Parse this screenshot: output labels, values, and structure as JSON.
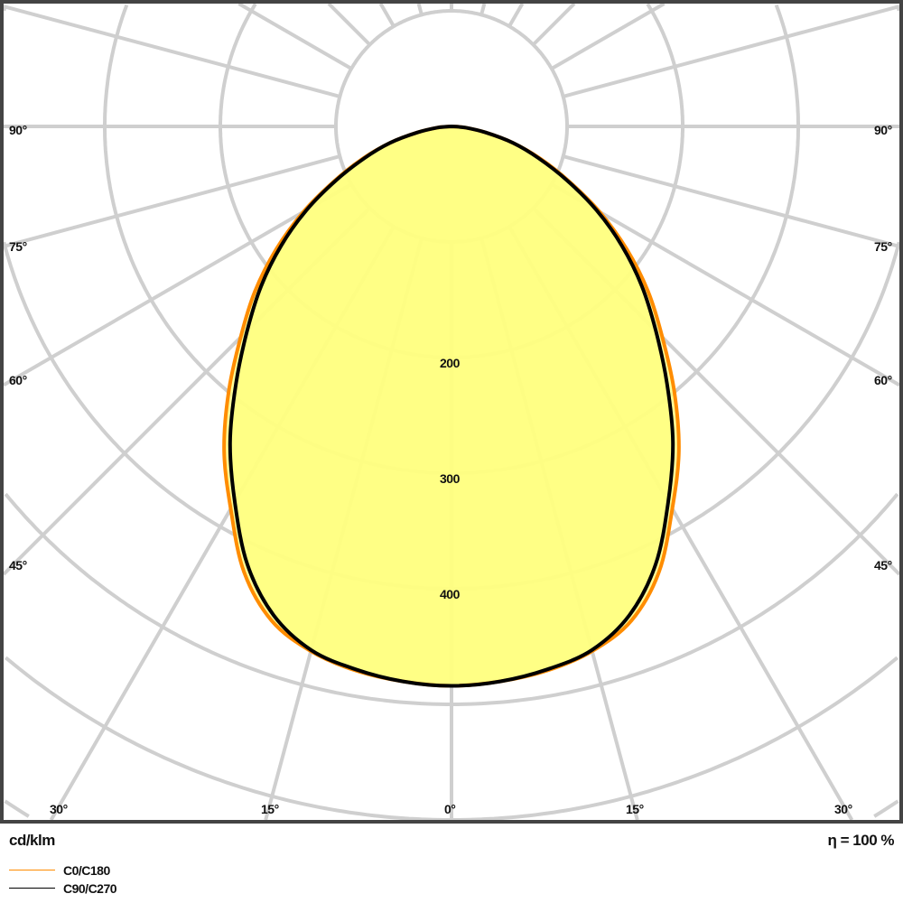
{
  "chart_data": {
    "type": "polar",
    "unit_label": "cd/klm",
    "efficiency_label": "η = 100 %",
    "radial_tick_labels": [
      "200",
      "300",
      "400"
    ],
    "radial_ring_step": 100,
    "angle_step": 15,
    "angle_labels": {
      "side": [
        "90°",
        "75°",
        "60°",
        "45°"
      ],
      "bottom": [
        "30°",
        "15°",
        "0°",
        "15°",
        "30°"
      ]
    },
    "grid": true,
    "legend_placement": "bottom-left",
    "angles": [
      0,
      5,
      10,
      15,
      20,
      25,
      30,
      35,
      40,
      45,
      50,
      55,
      60,
      65,
      70,
      75,
      80,
      85,
      90
    ],
    "series": [
      {
        "name": "C0/C180",
        "color": "#ff8c00",
        "values": [
          484,
          482,
          478,
          470,
          455,
          425,
          382,
          343,
          300,
          258,
          222,
          185,
          148,
          112,
          82,
          55,
          30,
          12,
          0
        ]
      },
      {
        "name": "C90/C270",
        "color": "#000000",
        "values": [
          484,
          482,
          477,
          469,
          450,
          418,
          375,
          334,
          290,
          250,
          215,
          180,
          145,
          110,
          80,
          55,
          30,
          12,
          0
        ]
      }
    ],
    "fill_color": "#ffff80"
  }
}
